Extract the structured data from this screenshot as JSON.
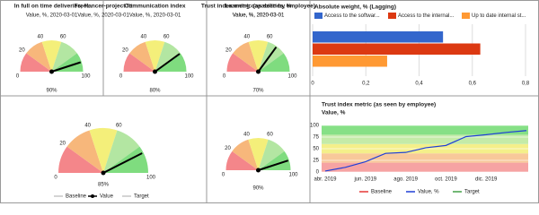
{
  "chart_data": [
    {
      "type": "gauge",
      "title": "In full on time deliveries, %",
      "subtitle": "Value, %, 2020-03-01",
      "value": 90,
      "value_label": "90%",
      "range": [
        0,
        100
      ],
      "ticks": [
        0,
        20,
        40,
        60,
        100
      ],
      "band_edges": [
        0,
        20,
        40,
        60,
        80,
        100
      ],
      "band_colors": [
        "#f4868a",
        "#f7b77b",
        "#f4ef7a",
        "#b3e6a2",
        "#7fdc7f"
      ]
    },
    {
      "type": "gauge",
      "title": "Communication index",
      "subtitle": "Value, %, 2020-03-01",
      "value": 80,
      "value_label": "80%",
      "range": [
        0,
        100
      ],
      "ticks": [
        0,
        20,
        40,
        60,
        100
      ],
      "band_edges": [
        0,
        20,
        40,
        60,
        80,
        100
      ],
      "band_colors": [
        "#f4868a",
        "#f7b77b",
        "#f4ef7a",
        "#b3e6a2",
        "#7fdc7f"
      ]
    },
    {
      "type": "gauge",
      "title": "Learning capabilities, %",
      "subtitle": "Value, %, 2020-03-01",
      "value": 70,
      "value_label": "70%",
      "range": [
        0,
        100
      ],
      "ticks": [
        0,
        20,
        40,
        60,
        100
      ],
      "band_edges": [
        0,
        20,
        40,
        60,
        80,
        100
      ],
      "band_colors": [
        "#f4868a",
        "#f7b77b",
        "#f4ef7a",
        "#b3e6a2",
        "#7fdc7f"
      ]
    },
    {
      "type": "hbar",
      "title": "Absolute weight, % (Lagging)",
      "series": [
        {
          "name": "Access to the softwar...",
          "color": "#3366cc",
          "values": [
            0.49
          ]
        },
        {
          "name": "Access to the internal...",
          "color": "#dc3912",
          "values": [
            0.63
          ]
        },
        {
          "name": "Up to date internal st...",
          "color": "#ff9933",
          "values": [
            0.28
          ]
        }
      ],
      "xlim": [
        0,
        0.8
      ],
      "xticks": [
        0,
        {
          "value": 0.2,
          "label": "0,2"
        },
        {
          "value": 0.4,
          "label": "0,4"
        },
        {
          "value": 0.6,
          "label": "0,6"
        },
        {
          "value": 0.8,
          "label": "0,8"
        }
      ],
      "grid": true
    },
    {
      "type": "gauge",
      "title": "Freelancer-project fit",
      "subtitle": "Value, %, 2020-03-01",
      "value": 85,
      "value_label": "85%",
      "range": [
        0,
        100
      ],
      "ticks": [
        0,
        20,
        40,
        60,
        100
      ],
      "band_edges": [
        0,
        20,
        40,
        60,
        80,
        100
      ],
      "band_colors": [
        "#f4868a",
        "#f7b77b",
        "#f4ef7a",
        "#b3e6a2",
        "#7fdc7f"
      ],
      "legend": [
        "Baseline",
        "Value",
        "Target"
      ]
    },
    {
      "type": "gauge",
      "title": "Trust index metric (as seen by employee)",
      "subtitle": "Value, %, 2020-03-01",
      "value": 90,
      "value_label": "90%",
      "range": [
        0,
        100
      ],
      "ticks": [
        0,
        20,
        40,
        60,
        100
      ],
      "band_edges": [
        0,
        20,
        40,
        60,
        80,
        100
      ],
      "band_colors": [
        "#f4868a",
        "#f7b77b",
        "#f4ef7a",
        "#b3e6a2",
        "#7fdc7f"
      ]
    },
    {
      "type": "line",
      "title": "Trust index metric (as seen by employee)",
      "subtitle": "Value, %",
      "categories": [
        "abr. 2019",
        null,
        "jun. 2019",
        null,
        "ago. 2019",
        null,
        "oct. 2019",
        null,
        "dic. 2019",
        null,
        null
      ],
      "series": [
        {
          "name": "Value, %",
          "color": "#1f3fd6",
          "values": [
            2,
            10,
            22,
            40,
            42,
            52,
            57,
            76,
            80,
            85,
            89
          ]
        }
      ],
      "baseline": {
        "name": "Baseline",
        "color": "#e53935"
      },
      "target": {
        "name": "Target",
        "color": "#43a047"
      },
      "ylim": [
        0,
        100
      ],
      "yticks": [
        0,
        25,
        50,
        75,
        100
      ],
      "band_edges": [
        0,
        20,
        40,
        60,
        80,
        100
      ],
      "band_colors": [
        "#f6a3a3",
        "#f8c89a",
        "#f4ef8a",
        "#c4eba8",
        "#86e086"
      ]
    }
  ]
}
